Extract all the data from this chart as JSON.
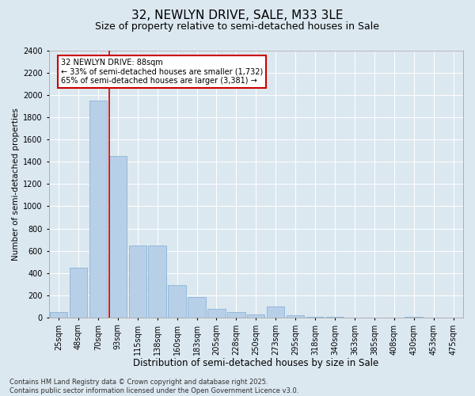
{
  "title1": "32, NEWLYN DRIVE, SALE, M33 3LE",
  "title2": "Size of property relative to semi-detached houses in Sale",
  "xlabel": "Distribution of semi-detached houses by size in Sale",
  "ylabel": "Number of semi-detached properties",
  "categories": [
    "25sqm",
    "48sqm",
    "70sqm",
    "93sqm",
    "115sqm",
    "138sqm",
    "160sqm",
    "183sqm",
    "205sqm",
    "228sqm",
    "250sqm",
    "273sqm",
    "295sqm",
    "318sqm",
    "340sqm",
    "363sqm",
    "385sqm",
    "408sqm",
    "430sqm",
    "453sqm",
    "475sqm"
  ],
  "values": [
    50,
    450,
    1950,
    1450,
    650,
    650,
    290,
    185,
    80,
    50,
    30,
    100,
    20,
    5,
    5,
    0,
    0,
    0,
    5,
    0,
    0
  ],
  "bar_color": "#b8cfe8",
  "bar_edge_color": "#7aadd4",
  "vline_color": "#cc0000",
  "vline_x_index": 3,
  "annotation_text": "32 NEWLYN DRIVE: 88sqm\n← 33% of semi-detached houses are smaller (1,732)\n65% of semi-detached houses are larger (3,381) →",
  "annotation_box_edgecolor": "#cc0000",
  "ylim": [
    0,
    2400
  ],
  "yticks": [
    0,
    200,
    400,
    600,
    800,
    1000,
    1200,
    1400,
    1600,
    1800,
    2000,
    2200,
    2400
  ],
  "background_color": "#dce8f0",
  "grid_color": "#ffffff",
  "footer_text": "Contains HM Land Registry data © Crown copyright and database right 2025.\nContains public sector information licensed under the Open Government Licence v3.0.",
  "title1_fontsize": 11,
  "title2_fontsize": 9,
  "xlabel_fontsize": 8.5,
  "ylabel_fontsize": 7.5,
  "tick_fontsize": 7,
  "footer_fontsize": 6,
  "annotation_fontsize": 7
}
